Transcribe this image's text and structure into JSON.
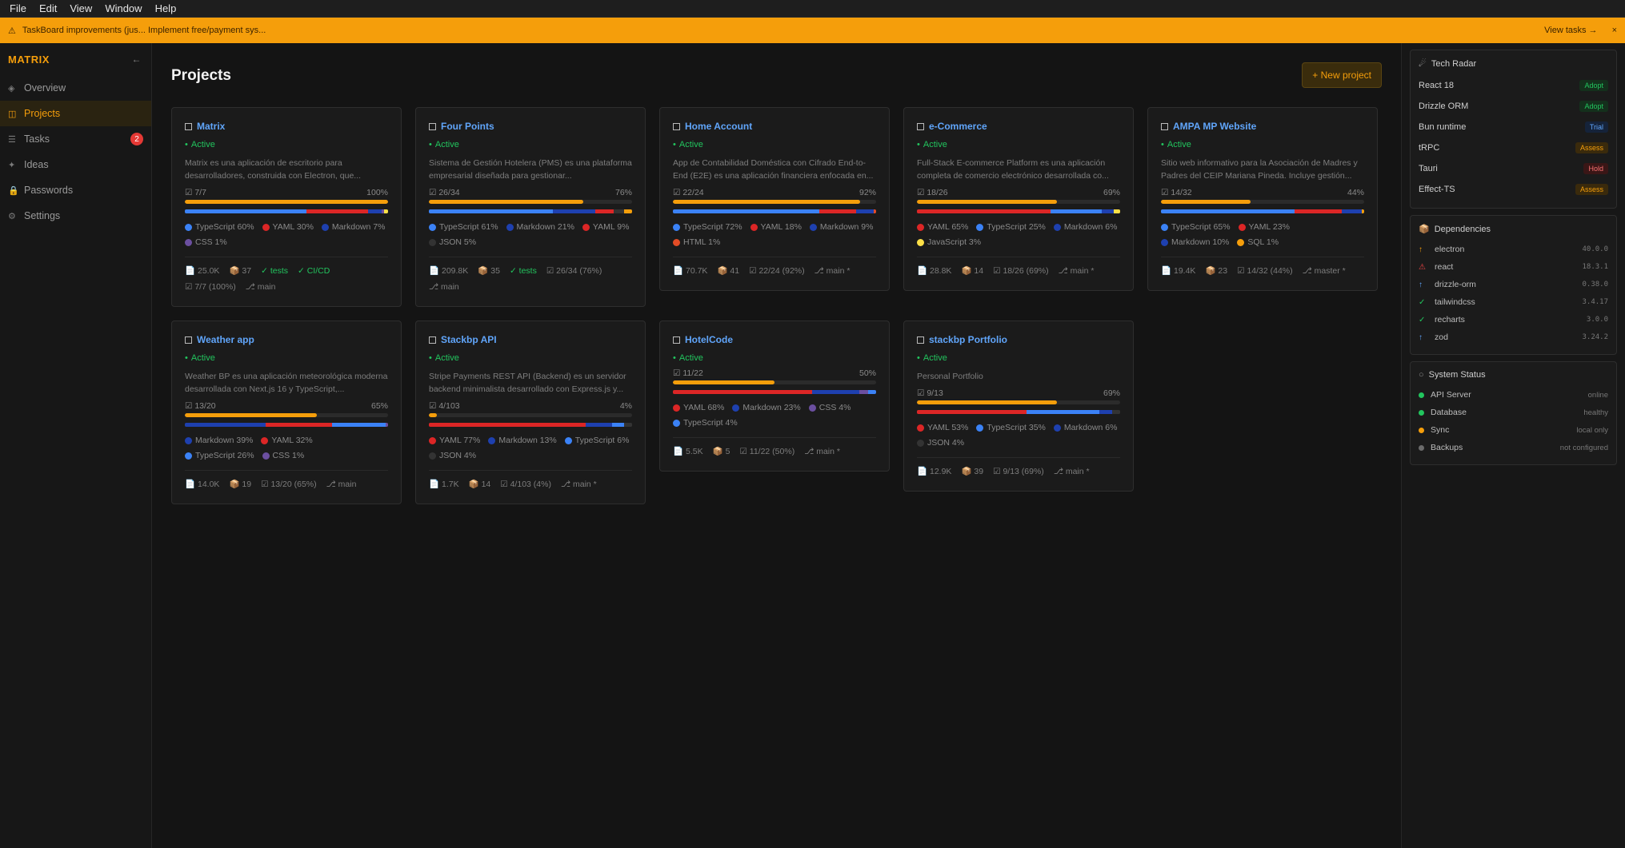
{
  "menu": [
    "File",
    "Edit",
    "View",
    "Window",
    "Help"
  ],
  "banner": {
    "text": "TaskBoard improvements (jus...  Implement free/payment sys...",
    "view_tasks": "View tasks →",
    "close": "×"
  },
  "sidebar": {
    "brand": "MATRIX",
    "collapse": "←",
    "items": [
      {
        "label": "Overview",
        "icon": "◈"
      },
      {
        "label": "Projects",
        "icon": "◫"
      },
      {
        "label": "Tasks",
        "icon": "☰",
        "badge": "2"
      },
      {
        "label": "Ideas",
        "icon": "✦"
      },
      {
        "label": "Passwords",
        "icon": "🔒"
      },
      {
        "label": "Settings",
        "icon": "⚙"
      }
    ]
  },
  "main": {
    "title": "Projects",
    "new_project": "+ New project"
  },
  "projects": [
    {
      "name": "Matrix",
      "status": "Active",
      "desc": "Matrix es una aplicación de escritorio para desarrolladores, construida con Electron, que...",
      "tasks": "7/7",
      "pct": "100%",
      "progress": 1.0,
      "langs": [
        {
          "n": "TypeScript 60%",
          "c": "#3b82f6",
          "v": 60
        },
        {
          "n": "YAML 30%",
          "c": "#dc2626",
          "v": 30
        },
        {
          "n": "Markdown 7%",
          "c": "#1e40af",
          "v": 7
        },
        {
          "n": "CSS 1%",
          "c": "#6b4fa0",
          "v": 1
        },
        {
          "n": "",
          "c": "#fde047",
          "v": 2
        }
      ],
      "meta": [
        "📄 25.0K",
        "📦 37",
        "✓ tests",
        "✓ CI/CD",
        "☑ 7/7 (100%)",
        "⎇ main"
      ]
    },
    {
      "name": "Four Points",
      "status": "Active",
      "desc": "Sistema de Gestión Hotelera (PMS) es una plataforma empresarial diseñada para gestionar...",
      "tasks": "26/34",
      "pct": "76%",
      "progress": 0.76,
      "langs": [
        {
          "n": "TypeScript 61%",
          "c": "#3b82f6",
          "v": 61
        },
        {
          "n": "Markdown 21%",
          "c": "#1e40af",
          "v": 21
        },
        {
          "n": "YAML 9%",
          "c": "#dc2626",
          "v": 9
        },
        {
          "n": "JSON 5%",
          "c": "#333333",
          "v": 5
        },
        {
          "n": "",
          "c": "#f59e0b",
          "v": 4
        }
      ],
      "meta": [
        "📄 209.8K",
        "📦 35",
        "✓ tests",
        "☑ 26/34 (76%)",
        "⎇ main"
      ]
    },
    {
      "name": "Home Account",
      "status": "Active",
      "desc": "App de Contabilidad Doméstica con Cifrado End-to-End (E2E) es una aplicación financiera enfocada en...",
      "tasks": "22/24",
      "pct": "92%",
      "progress": 0.92,
      "langs": [
        {
          "n": "TypeScript 72%",
          "c": "#3b82f6",
          "v": 72
        },
        {
          "n": "YAML 18%",
          "c": "#dc2626",
          "v": 18
        },
        {
          "n": "Markdown 9%",
          "c": "#1e40af",
          "v": 9
        },
        {
          "n": "HTML 1%",
          "c": "#e34c26",
          "v": 1
        }
      ],
      "meta": [
        "📄 70.7K",
        "📦 41",
        "☑ 22/24 (92%)",
        "⎇ main *"
      ]
    },
    {
      "name": "e-Commerce",
      "status": "Active",
      "desc": "Full-Stack E-commerce Platform es una aplicación completa de comercio electrónico desarrollada co...",
      "tasks": "18/26",
      "pct": "69%",
      "progress": 0.69,
      "langs": [
        {
          "n": "YAML 65%",
          "c": "#dc2626",
          "v": 65
        },
        {
          "n": "TypeScript 25%",
          "c": "#3b82f6",
          "v": 25
        },
        {
          "n": "Markdown 6%",
          "c": "#1e40af",
          "v": 6
        },
        {
          "n": "JavaScript 3%",
          "c": "#fde047",
          "v": 3
        }
      ],
      "meta": [
        "📄 28.8K",
        "📦 14",
        "☑ 18/26 (69%)",
        "⎇ main *"
      ]
    },
    {
      "name": "AMPA MP Website",
      "status": "Active",
      "desc": "Sitio web informativo para la Asociación de Madres y Padres del CEIP Mariana Pineda. Incluye gestión...",
      "tasks": "14/32",
      "pct": "44%",
      "progress": 0.44,
      "langs": [
        {
          "n": "TypeScript 65%",
          "c": "#3b82f6",
          "v": 65
        },
        {
          "n": "YAML 23%",
          "c": "#dc2626",
          "v": 23
        },
        {
          "n": "Markdown 10%",
          "c": "#1e40af",
          "v": 10
        },
        {
          "n": "SQL 1%",
          "c": "#f59e0b",
          "v": 1
        }
      ],
      "meta": [
        "📄 19.4K",
        "📦 23",
        "☑ 14/32 (44%)",
        "⎇ master *"
      ]
    },
    {
      "name": "Weather app",
      "status": "Active",
      "desc": "Weather BP es una aplicación meteorológica moderna desarrollada con Next.js 16 y TypeScript,...",
      "tasks": "13/20",
      "pct": "65%",
      "progress": 0.65,
      "langs": [
        {
          "n": "Markdown 39%",
          "c": "#1e40af",
          "v": 39
        },
        {
          "n": "YAML 32%",
          "c": "#dc2626",
          "v": 32
        },
        {
          "n": "TypeScript 26%",
          "c": "#3b82f6",
          "v": 26
        },
        {
          "n": "CSS 1%",
          "c": "#6b4fa0",
          "v": 1
        }
      ],
      "meta": [
        "📄 14.0K",
        "📦 19",
        "☑ 13/20 (65%)",
        "⎇ main"
      ]
    },
    {
      "name": "Stackbp API",
      "status": "Active",
      "desc": "Stripe Payments REST API (Backend) es un servidor backend minimalista desarrollado con Express.js y...",
      "tasks": "4/103",
      "pct": "4%",
      "progress": 0.04,
      "langs": [
        {
          "n": "YAML 77%",
          "c": "#dc2626",
          "v": 77
        },
        {
          "n": "Markdown 13%",
          "c": "#1e40af",
          "v": 13
        },
        {
          "n": "TypeScript 6%",
          "c": "#3b82f6",
          "v": 6
        },
        {
          "n": "JSON 4%",
          "c": "#333333",
          "v": 4
        }
      ],
      "meta": [
        "📄 1.7K",
        "📦 14",
        "☑ 4/103 (4%)",
        "⎇ main *"
      ]
    },
    {
      "name": "HotelCode",
      "status": "Active",
      "desc": "",
      "tasks": "11/22",
      "pct": "50%",
      "progress": 0.5,
      "langs": [
        {
          "n": "YAML 68%",
          "c": "#dc2626",
          "v": 68
        },
        {
          "n": "Markdown 23%",
          "c": "#1e40af",
          "v": 23
        },
        {
          "n": "CSS 4%",
          "c": "#6b4fa0",
          "v": 4
        },
        {
          "n": "TypeScript 4%",
          "c": "#3b82f6",
          "v": 4
        }
      ],
      "meta": [
        "📄 5.5K",
        "📦 5",
        "☑ 11/22 (50%)",
        "⎇ main *"
      ]
    },
    {
      "name": "stackbp Portfolio",
      "status": "Active",
      "desc": "Personal Portfolio",
      "tasks": "9/13",
      "pct": "69%",
      "progress": 0.69,
      "langs": [
        {
          "n": "YAML 53%",
          "c": "#dc2626",
          "v": 53
        },
        {
          "n": "TypeScript 35%",
          "c": "#3b82f6",
          "v": 35
        },
        {
          "n": "Markdown 6%",
          "c": "#1e40af",
          "v": 6
        },
        {
          "n": "JSON 4%",
          "c": "#333333",
          "v": 4
        }
      ],
      "meta": [
        "📄 12.9K",
        "📦 39",
        "☑ 9/13 (69%)",
        "⎇ main *"
      ]
    }
  ],
  "tech_radar": {
    "title": "Tech Radar",
    "items": [
      {
        "name": "React 18",
        "tag": "Adopt",
        "color": "#22c55e",
        "bg": "#14301c"
      },
      {
        "name": "Drizzle ORM",
        "tag": "Adopt",
        "color": "#22c55e",
        "bg": "#14301c"
      },
      {
        "name": "Bun runtime",
        "tag": "Trial",
        "color": "#60a5fa",
        "bg": "#15233a"
      },
      {
        "name": "tRPC",
        "tag": "Assess",
        "color": "#f59e0b",
        "bg": "#3a2a0c"
      },
      {
        "name": "Tauri",
        "tag": "Hold",
        "color": "#f87171",
        "bg": "#3a1616"
      },
      {
        "name": "Effect-TS",
        "tag": "Assess",
        "color": "#f59e0b",
        "bg": "#3a2a0c"
      }
    ]
  },
  "dependencies": {
    "title": "Dependencies",
    "items": [
      {
        "name": "electron",
        "icon": "↑",
        "color": "#f59e0b",
        "version": "40.0.0"
      },
      {
        "name": "react",
        "icon": "⚠",
        "color": "#ef4444",
        "version": "18.3.1"
      },
      {
        "name": "drizzle-orm",
        "icon": "↑",
        "color": "#60a5fa",
        "version": "0.38.0"
      },
      {
        "name": "tailwindcss",
        "icon": "✓",
        "color": "#22c55e",
        "version": "3.4.17"
      },
      {
        "name": "recharts",
        "icon": "✓",
        "color": "#22c55e",
        "version": "3.0.0"
      },
      {
        "name": "zod",
        "icon": "↑",
        "color": "#60a5fa",
        "version": "3.24.2"
      }
    ]
  },
  "system_status": {
    "title": "System Status",
    "items": [
      {
        "name": "API Server",
        "value": "online",
        "color": "#22c55e"
      },
      {
        "name": "Database",
        "value": "healthy",
        "color": "#22c55e"
      },
      {
        "name": "Sync",
        "value": "local only",
        "color": "#f59e0b"
      },
      {
        "name": "Backups",
        "value": "not configured",
        "color": "#6b6b6b"
      }
    ]
  }
}
